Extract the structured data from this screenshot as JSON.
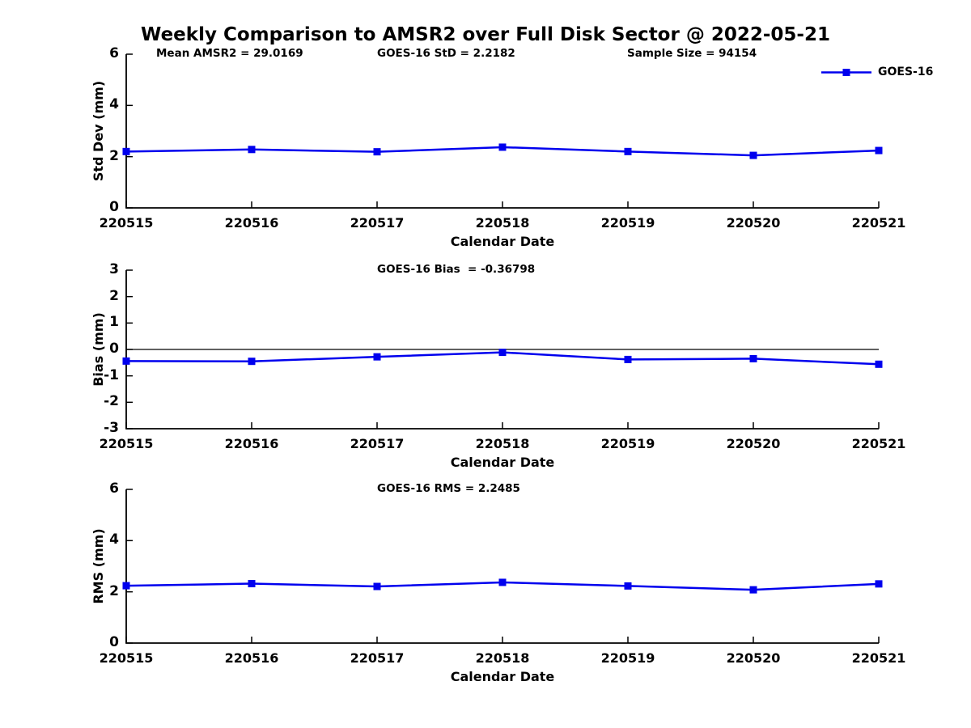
{
  "figure": {
    "title": "Weekly Comparison to AMSR2 over Full Disk Sector @ 2022-05-21",
    "xlabel": "Calendar Date",
    "legend": {
      "label": "GOES-16",
      "color": "#0000EE",
      "marker": "filled-square"
    },
    "accent_color": "#0000EE",
    "axis_color": "#000000"
  },
  "chart_data": [
    {
      "type": "line",
      "categories": [
        "220515",
        "220516",
        "220517",
        "220518",
        "220519",
        "220520",
        "220521"
      ],
      "series": [
        {
          "name": "GOES-16",
          "color": "#0000EE",
          "marker": "filled-square",
          "values": [
            2.2,
            2.28,
            2.19,
            2.37,
            2.2,
            2.05,
            2.24
          ]
        }
      ],
      "xlabel": "Calendar Date",
      "ylabel": "Std Dev (mm)",
      "ylim": [
        0,
        6
      ],
      "yticks": [
        "0",
        "2",
        "4",
        "6"
      ],
      "grid": false,
      "legend_position": "top-right-outside",
      "annotations": [
        {
          "text": "Mean AMSR2 = 29.0169",
          "position": "top-left"
        },
        {
          "text": "GOES-16 StD = 2.2182",
          "position": "top-center"
        },
        {
          "text": "Sample Size = 94154",
          "position": "top-right"
        }
      ]
    },
    {
      "type": "line",
      "categories": [
        "220515",
        "220516",
        "220517",
        "220518",
        "220519",
        "220520",
        "220521"
      ],
      "series": [
        {
          "name": "GOES-16",
          "color": "#0000EE",
          "marker": "filled-square",
          "values": [
            -0.44,
            -0.45,
            -0.28,
            -0.11,
            -0.38,
            -0.35,
            -0.56
          ]
        }
      ],
      "xlabel": "Calendar Date",
      "ylabel": "Bias (mm)",
      "ylim": [
        -3,
        3
      ],
      "yticks": [
        "-3",
        "-2",
        "-1",
        "0",
        "1",
        "2",
        "3"
      ],
      "zero_line": true,
      "grid": false,
      "annotations": [
        {
          "text": "GOES-16 Bias  = -0.36798",
          "position": "top-center"
        }
      ]
    },
    {
      "type": "line",
      "categories": [
        "220515",
        "220516",
        "220517",
        "220518",
        "220519",
        "220520",
        "220521"
      ],
      "series": [
        {
          "name": "GOES-16",
          "color": "#0000EE",
          "marker": "filled-square",
          "values": [
            2.24,
            2.32,
            2.21,
            2.37,
            2.23,
            2.08,
            2.31
          ]
        }
      ],
      "xlabel": "Calendar Date",
      "ylabel": "RMS (mm)",
      "ylim": [
        0,
        6
      ],
      "yticks": [
        "0",
        "2",
        "4",
        "6"
      ],
      "grid": false,
      "annotations": [
        {
          "text": "GOES-16 RMS = 2.2485",
          "position": "top-center"
        }
      ]
    }
  ]
}
